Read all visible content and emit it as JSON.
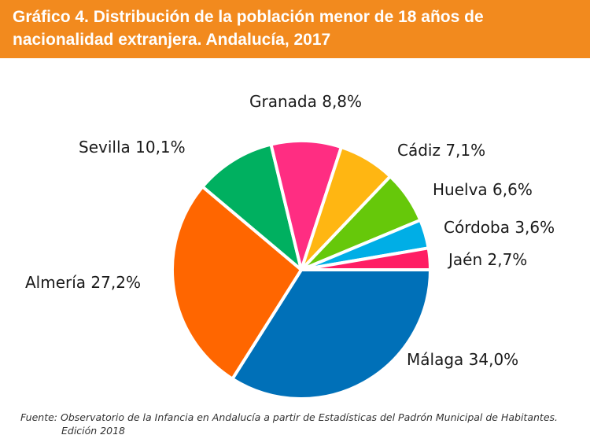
{
  "header": {
    "title": "Gráfico 4. Distribución de la población menor de 18 años de nacionalidad extranjera. Andalucía, 2017"
  },
  "chart_data": {
    "type": "pie",
    "title": "Gráfico 4. Distribución de la población menor de 18 años de nacionalidad extranjera. Andalucía, 2017",
    "slices": [
      {
        "label": "Málaga 34,0%",
        "name": "Málaga",
        "value": 34.0,
        "color": "#0070b8"
      },
      {
        "label": "Almería 27,2%",
        "name": "Almería",
        "value": 27.2,
        "color": "#ff6600"
      },
      {
        "label": "Sevilla 10,1%",
        "name": "Sevilla",
        "value": 10.1,
        "color": "#00b060"
      },
      {
        "label": "Granada 8,8%",
        "name": "Granada",
        "value": 8.8,
        "color": "#ff2d82"
      },
      {
        "label": "Cádiz 7,1%",
        "name": "Cádiz",
        "value": 7.1,
        "color": "#ffb612"
      },
      {
        "label": "Huelva 6,6%",
        "name": "Huelva",
        "value": 6.6,
        "color": "#66c80a"
      },
      {
        "label": "Córdoba 3,6%",
        "name": "Córdoba",
        "value": 3.6,
        "color": "#00aee6"
      },
      {
        "label": "Jaén 2,7%",
        "name": "Jaén",
        "value": 2.7,
        "color": "#ff1e64"
      }
    ],
    "start_direction": "east",
    "direction": "clockwise"
  },
  "source": {
    "line1": "Fuente: Observatorio de la Infancia en Andalucía a partir de Estadísticas del Padrón Municipal de Habitantes.",
    "line2": "Edición 2018"
  }
}
